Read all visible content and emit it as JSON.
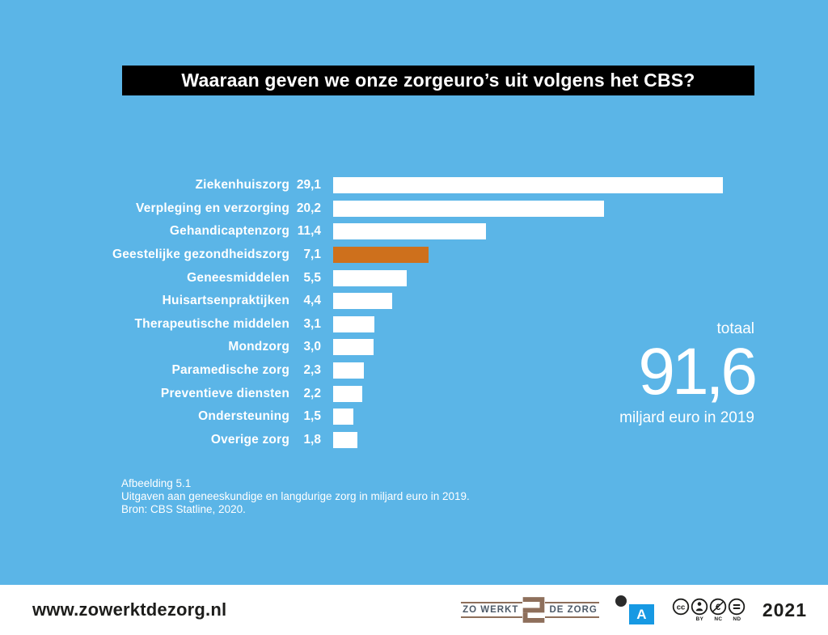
{
  "page": {
    "background_color": "#5BB5E7",
    "accent_orange": "#CE701C"
  },
  "title": "Waaraan geven we onze zorgeuro’s uit volgens het CBS?",
  "chart_data": {
    "type": "bar",
    "orientation": "horizontal",
    "title": "Waaraan geven we onze zorgeuro’s uit volgens het CBS?",
    "unit": "miljard euro",
    "categories": [
      "Ziekenhuiszorg",
      "Verpleging en verzorging",
      "Gehandicaptenzorg",
      "Geestelijke gezondheidszorg",
      "Geneesmiddelen",
      "Huisartsenpraktijken",
      "Therapeutische middelen",
      "Mondzorg",
      "Paramedische zorg",
      "Preventieve diensten",
      "Ondersteuning",
      "Overige zorg"
    ],
    "values": [
      29.1,
      20.2,
      11.4,
      7.1,
      5.5,
      4.4,
      3.1,
      3.0,
      2.3,
      2.2,
      1.5,
      1.8
    ],
    "value_labels": [
      "29,1",
      "20,2",
      "11,4",
      "7,1",
      "5,5",
      "4,4",
      "3,1",
      "3,0",
      "2,3",
      "2,2",
      "1,5",
      "1,8"
    ],
    "highlight_index": 3,
    "bar_color": "#ffffff",
    "highlight_color": "#CE701C",
    "x_range": [
      0,
      29.1
    ],
    "grid": false,
    "legend": "none"
  },
  "total": {
    "label": "totaal",
    "value": "91,6",
    "subtitle": "miljard euro in 2019"
  },
  "caption": {
    "lines": [
      "Afbeelding 5.1",
      "Uitgaven aan geneeskundige en langdurige zorg in miljard euro in 2019.",
      "Bron: CBS Statline, 2020."
    ]
  },
  "footer": {
    "website": "www.zowerktdezorg.nl",
    "logo": {
      "left": "ZO WERKT",
      "right": "DE ZORG"
    },
    "publisher_letter": "A",
    "license": {
      "name": "CC BY-NC-ND",
      "badge_labels": [
        "BY",
        "NC",
        "ND"
      ]
    },
    "year": "2021"
  }
}
